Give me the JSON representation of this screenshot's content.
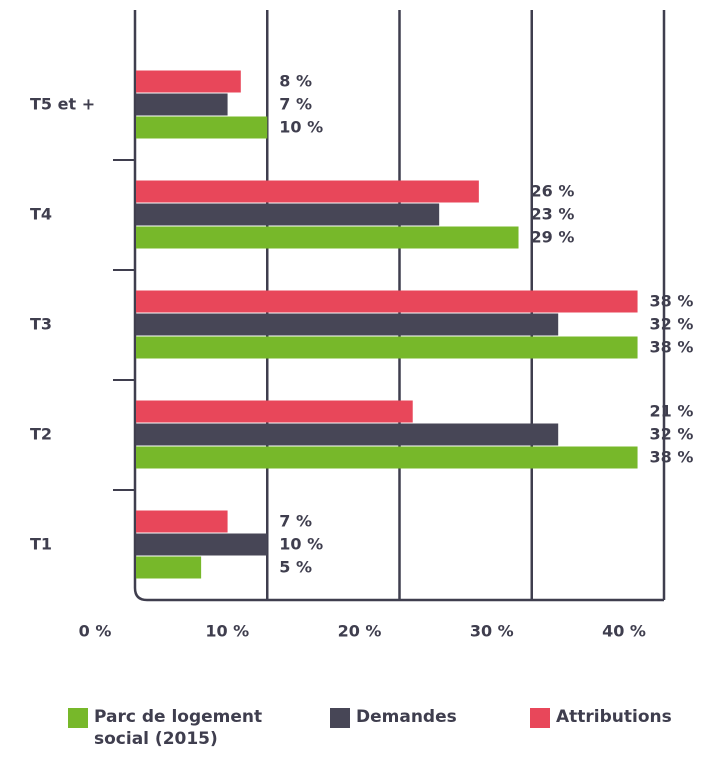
{
  "chart_data": {
    "type": "bar",
    "orientation": "horizontal",
    "categories": [
      "T5 et +",
      "T4",
      "T3",
      "T2",
      "T1"
    ],
    "series": [
      {
        "name": "Parc de logement social (2015)",
        "color": "#77b82a",
        "values": [
          10,
          29,
          38,
          38,
          5
        ],
        "value_labels": [
          "10 %",
          "29 %",
          "38 %",
          "38 %",
          "5 %"
        ]
      },
      {
        "name": "Demandes",
        "color": "#474656",
        "values": [
          7,
          23,
          32,
          32,
          10
        ],
        "value_labels": [
          "7 %",
          "23 %",
          "32 %",
          "32 %",
          "10 %"
        ]
      },
      {
        "name": "Attributions",
        "color": "#e8475a",
        "values": [
          8,
          26,
          38,
          21,
          7
        ],
        "value_labels": [
          "8 %",
          "26 %",
          "38 %",
          "21 %",
          "7 %"
        ]
      }
    ],
    "xlim": [
      0,
      40
    ],
    "xticks": [
      {
        "value": 0,
        "label": "0 %"
      },
      {
        "value": 10,
        "label": "10 %"
      },
      {
        "value": 20,
        "label": "20 %"
      },
      {
        "value": 30,
        "label": "30 %"
      },
      {
        "value": 40,
        "label": "40 %"
      }
    ],
    "grid": true,
    "legend": "bottom"
  }
}
